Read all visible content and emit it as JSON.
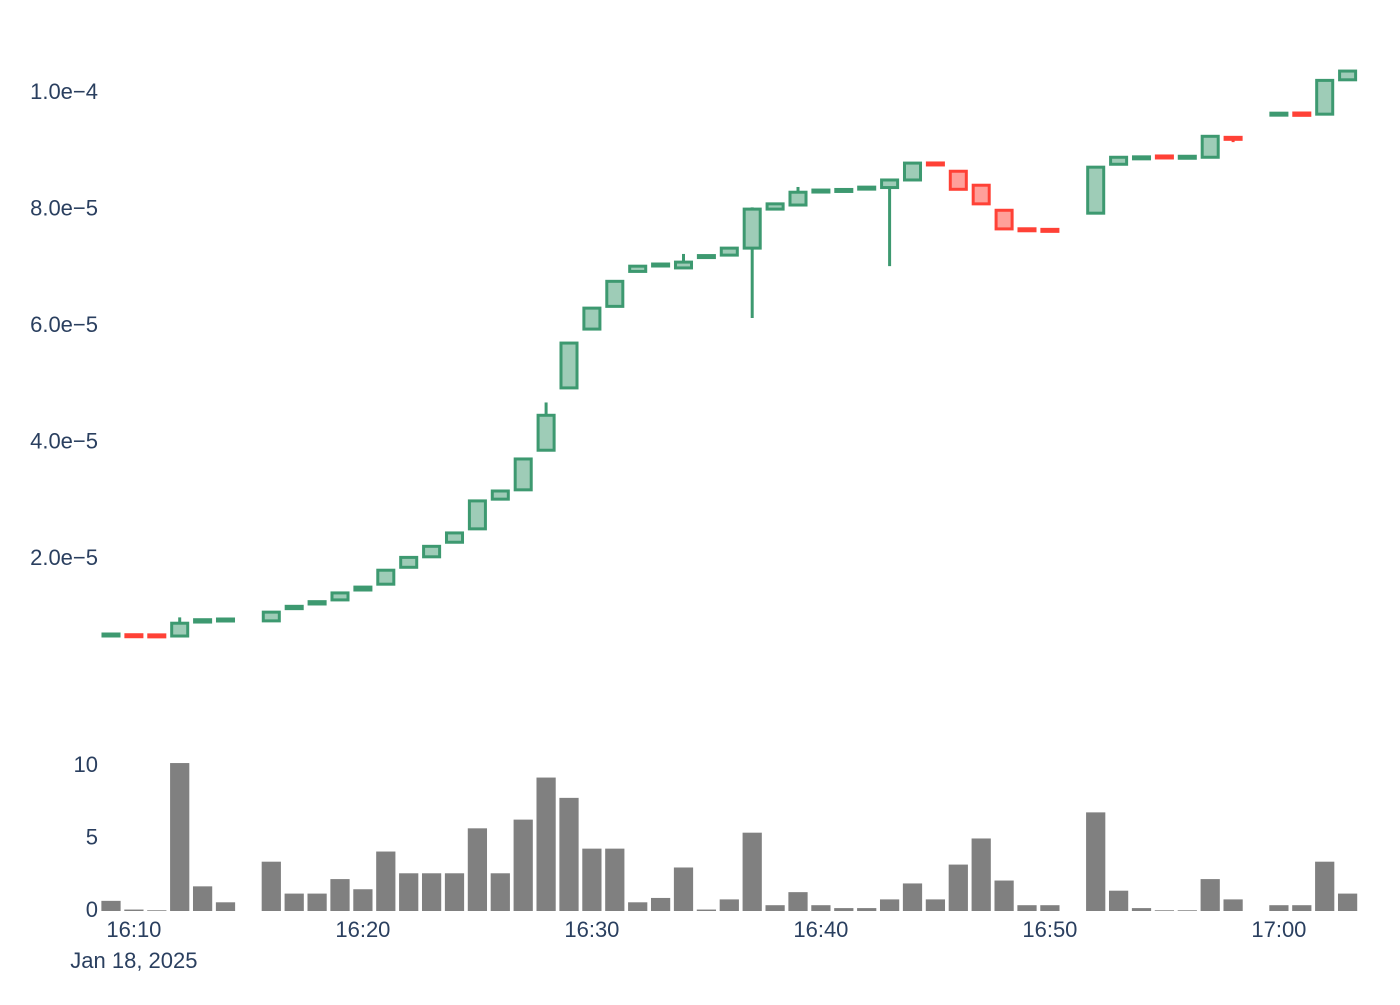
{
  "chart_data": [
    {
      "type": "candlestick",
      "increasing_color": "#3D9970",
      "decreasing_color": "#FF4136",
      "x": [
        "16:09",
        "16:10",
        "16:11",
        "16:12",
        "16:13",
        "16:14",
        "16:15",
        "16:16",
        "16:17",
        "16:18",
        "16:19",
        "16:20",
        "16:21",
        "16:22",
        "16:23",
        "16:24",
        "16:25",
        "16:26",
        "16:27",
        "16:28",
        "16:29",
        "16:30",
        "16:31",
        "16:32",
        "16:33",
        "16:34",
        "16:35",
        "16:36",
        "16:37",
        "16:38",
        "16:39",
        "16:40",
        "16:41",
        "16:42",
        "16:43",
        "16:44",
        "16:45",
        "16:46",
        "16:47",
        "16:48",
        "16:49",
        "16:50",
        "16:51",
        "16:52",
        "16:53",
        "16:54",
        "16:55",
        "16:56",
        "16:57",
        "16:58",
        "16:59",
        "17:00",
        "17:01",
        "17:02",
        "17:03"
      ],
      "open": [
        6.95e-06,
        6.9e-06,
        6.85e-06,
        6.8e-06,
        9.2e-06,
        9.5e-06,
        null,
        9.4e-06,
        1.15e-05,
        1.23e-05,
        1.3e-05,
        1.47e-05,
        1.57e-05,
        1.86e-05,
        2.04e-05,
        2.29e-05,
        2.52e-05,
        3.03e-05,
        3.19e-05,
        3.87e-05,
        4.94e-05,
        5.95e-05,
        6.34e-05,
        6.94e-05,
        7.04e-05,
        7e-05,
        7.18e-05,
        7.22e-05,
        7.34e-05,
        8.01e-05,
        8.08e-05,
        8.31e-05,
        8.32e-05,
        8.36e-05,
        8.38e-05,
        8.51e-05,
        8.8e-05,
        8.66e-05,
        8.42e-05,
        7.99e-05,
        7.67e-05,
        7.65e-05,
        null,
        7.94e-05,
        8.78e-05,
        8.88e-05,
        8.92e-05,
        8.89e-05,
        8.9e-05,
        9.24e-05,
        null,
        9.63e-05,
        9.66e-05,
        9.64e-05,
        0.0001023
      ],
      "high": [
        7e-06,
        6.9e-06,
        6.85e-06,
        1e-05,
        9.6e-06,
        9.6e-06,
        null,
        1.09e-05,
        1.19e-05,
        1.27e-05,
        1.42e-05,
        1.52e-05,
        1.81e-05,
        2.03e-05,
        2.22e-05,
        2.45e-05,
        3e-05,
        3.17e-05,
        3.72e-05,
        4.69e-05,
        5.71e-05,
        6.31e-05,
        6.77e-05,
        7.03e-05,
        7.06e-05,
        7.24e-05,
        7.21e-05,
        7.34e-05,
        8.04e-05,
        8.1e-05,
        8.39e-05,
        8.33e-05,
        8.34e-05,
        8.38e-05,
        8.51e-05,
        8.8e-05,
        8.8e-05,
        8.66e-05,
        8.42e-05,
        7.99e-05,
        7.67e-05,
        7.65e-05,
        null,
        8.73e-05,
        8.9e-05,
        8.9e-05,
        8.92e-05,
        8.91e-05,
        9.26e-05,
        9.24e-05,
        null,
        9.65e-05,
        9.66e-05,
        0.0001022,
        0.0001038
      ],
      "low": [
        6.95e-06,
        6.8e-06,
        6.8e-06,
        6.8e-06,
        9.2e-06,
        9.5e-06,
        null,
        9.4e-06,
        1.15e-05,
        1.23e-05,
        1.3e-05,
        1.47e-05,
        1.57e-05,
        1.86e-05,
        2.04e-05,
        2.29e-05,
        2.52e-05,
        3.03e-05,
        3.19e-05,
        3.87e-05,
        4.94e-05,
        5.95e-05,
        6.34e-05,
        6.94e-05,
        7.04e-05,
        7e-05,
        7.18e-05,
        7.22e-05,
        6.14e-05,
        8.01e-05,
        8.08e-05,
        8.31e-05,
        8.32e-05,
        8.36e-05,
        7.03e-05,
        8.51e-05,
        8.77e-05,
        8.35e-05,
        8.1e-05,
        7.67e-05,
        7.64e-05,
        7.64e-05,
        null,
        7.94e-05,
        8.78e-05,
        8.88e-05,
        8.89e-05,
        8.89e-05,
        8.9e-05,
        9.16e-05,
        null,
        9.63e-05,
        9.62e-05,
        9.64e-05,
        0.0001023
      ],
      "close": [
        7e-06,
        6.8e-06,
        6.8e-06,
        9e-06,
        9.6e-06,
        9.6e-06,
        null,
        1.09e-05,
        1.19e-05,
        1.27e-05,
        1.42e-05,
        1.52e-05,
        1.81e-05,
        2.03e-05,
        2.22e-05,
        2.45e-05,
        3e-05,
        3.17e-05,
        3.72e-05,
        4.47e-05,
        5.71e-05,
        6.31e-05,
        6.77e-05,
        7.03e-05,
        7.06e-05,
        7.1e-05,
        7.21e-05,
        7.34e-05,
        8.01e-05,
        8.1e-05,
        8.3e-05,
        8.33e-05,
        8.34e-05,
        8.38e-05,
        8.51e-05,
        8.8e-05,
        8.77e-05,
        8.35e-05,
        8.1e-05,
        7.67e-05,
        7.64e-05,
        7.64e-05,
        null,
        8.73e-05,
        8.9e-05,
        8.9e-05,
        8.89e-05,
        8.91e-05,
        9.26e-05,
        9.21e-05,
        null,
        9.65e-05,
        9.62e-05,
        0.0001022,
        0.0001038
      ],
      "ylim": [
        4.4e-06,
        0.0001057
      ],
      "yticks": [
        {
          "value": 2e-05,
          "label": "2.0e−5"
        },
        {
          "value": 4e-05,
          "label": "4.0e−5"
        },
        {
          "value": 6e-05,
          "label": "6.0e−5"
        },
        {
          "value": 8e-05,
          "label": "8.0e−5"
        },
        {
          "value": 0.0001,
          "label": "1.0e−4"
        }
      ]
    },
    {
      "type": "bar",
      "color": "#808080",
      "values": [
        0.7,
        0.1,
        0.05,
        10.2,
        1.7,
        0.6,
        0,
        3.4,
        1.2,
        1.2,
        2.2,
        1.5,
        4.1,
        2.6,
        2.6,
        2.6,
        5.7,
        2.6,
        6.3,
        9.2,
        7.8,
        4.3,
        4.3,
        0.6,
        0.9,
        3.0,
        0.1,
        0.8,
        5.4,
        0.4,
        1.3,
        0.4,
        0.2,
        0.2,
        0.8,
        1.9,
        0.8,
        3.2,
        5.0,
        2.1,
        0.4,
        0.4,
        0,
        6.8,
        1.4,
        0.2,
        0.05,
        0.05,
        2.2,
        0.8,
        0,
        0.4,
        0.4,
        3.4,
        1.2
      ],
      "ylim": [
        0,
        11.1
      ],
      "yticks": [
        0,
        5,
        10
      ],
      "xticks": [
        "16:10",
        "16:20",
        "16:30",
        "16:40",
        "16:50",
        "17:00"
      ],
      "x_date_label": "Jan 18, 2025"
    }
  ]
}
